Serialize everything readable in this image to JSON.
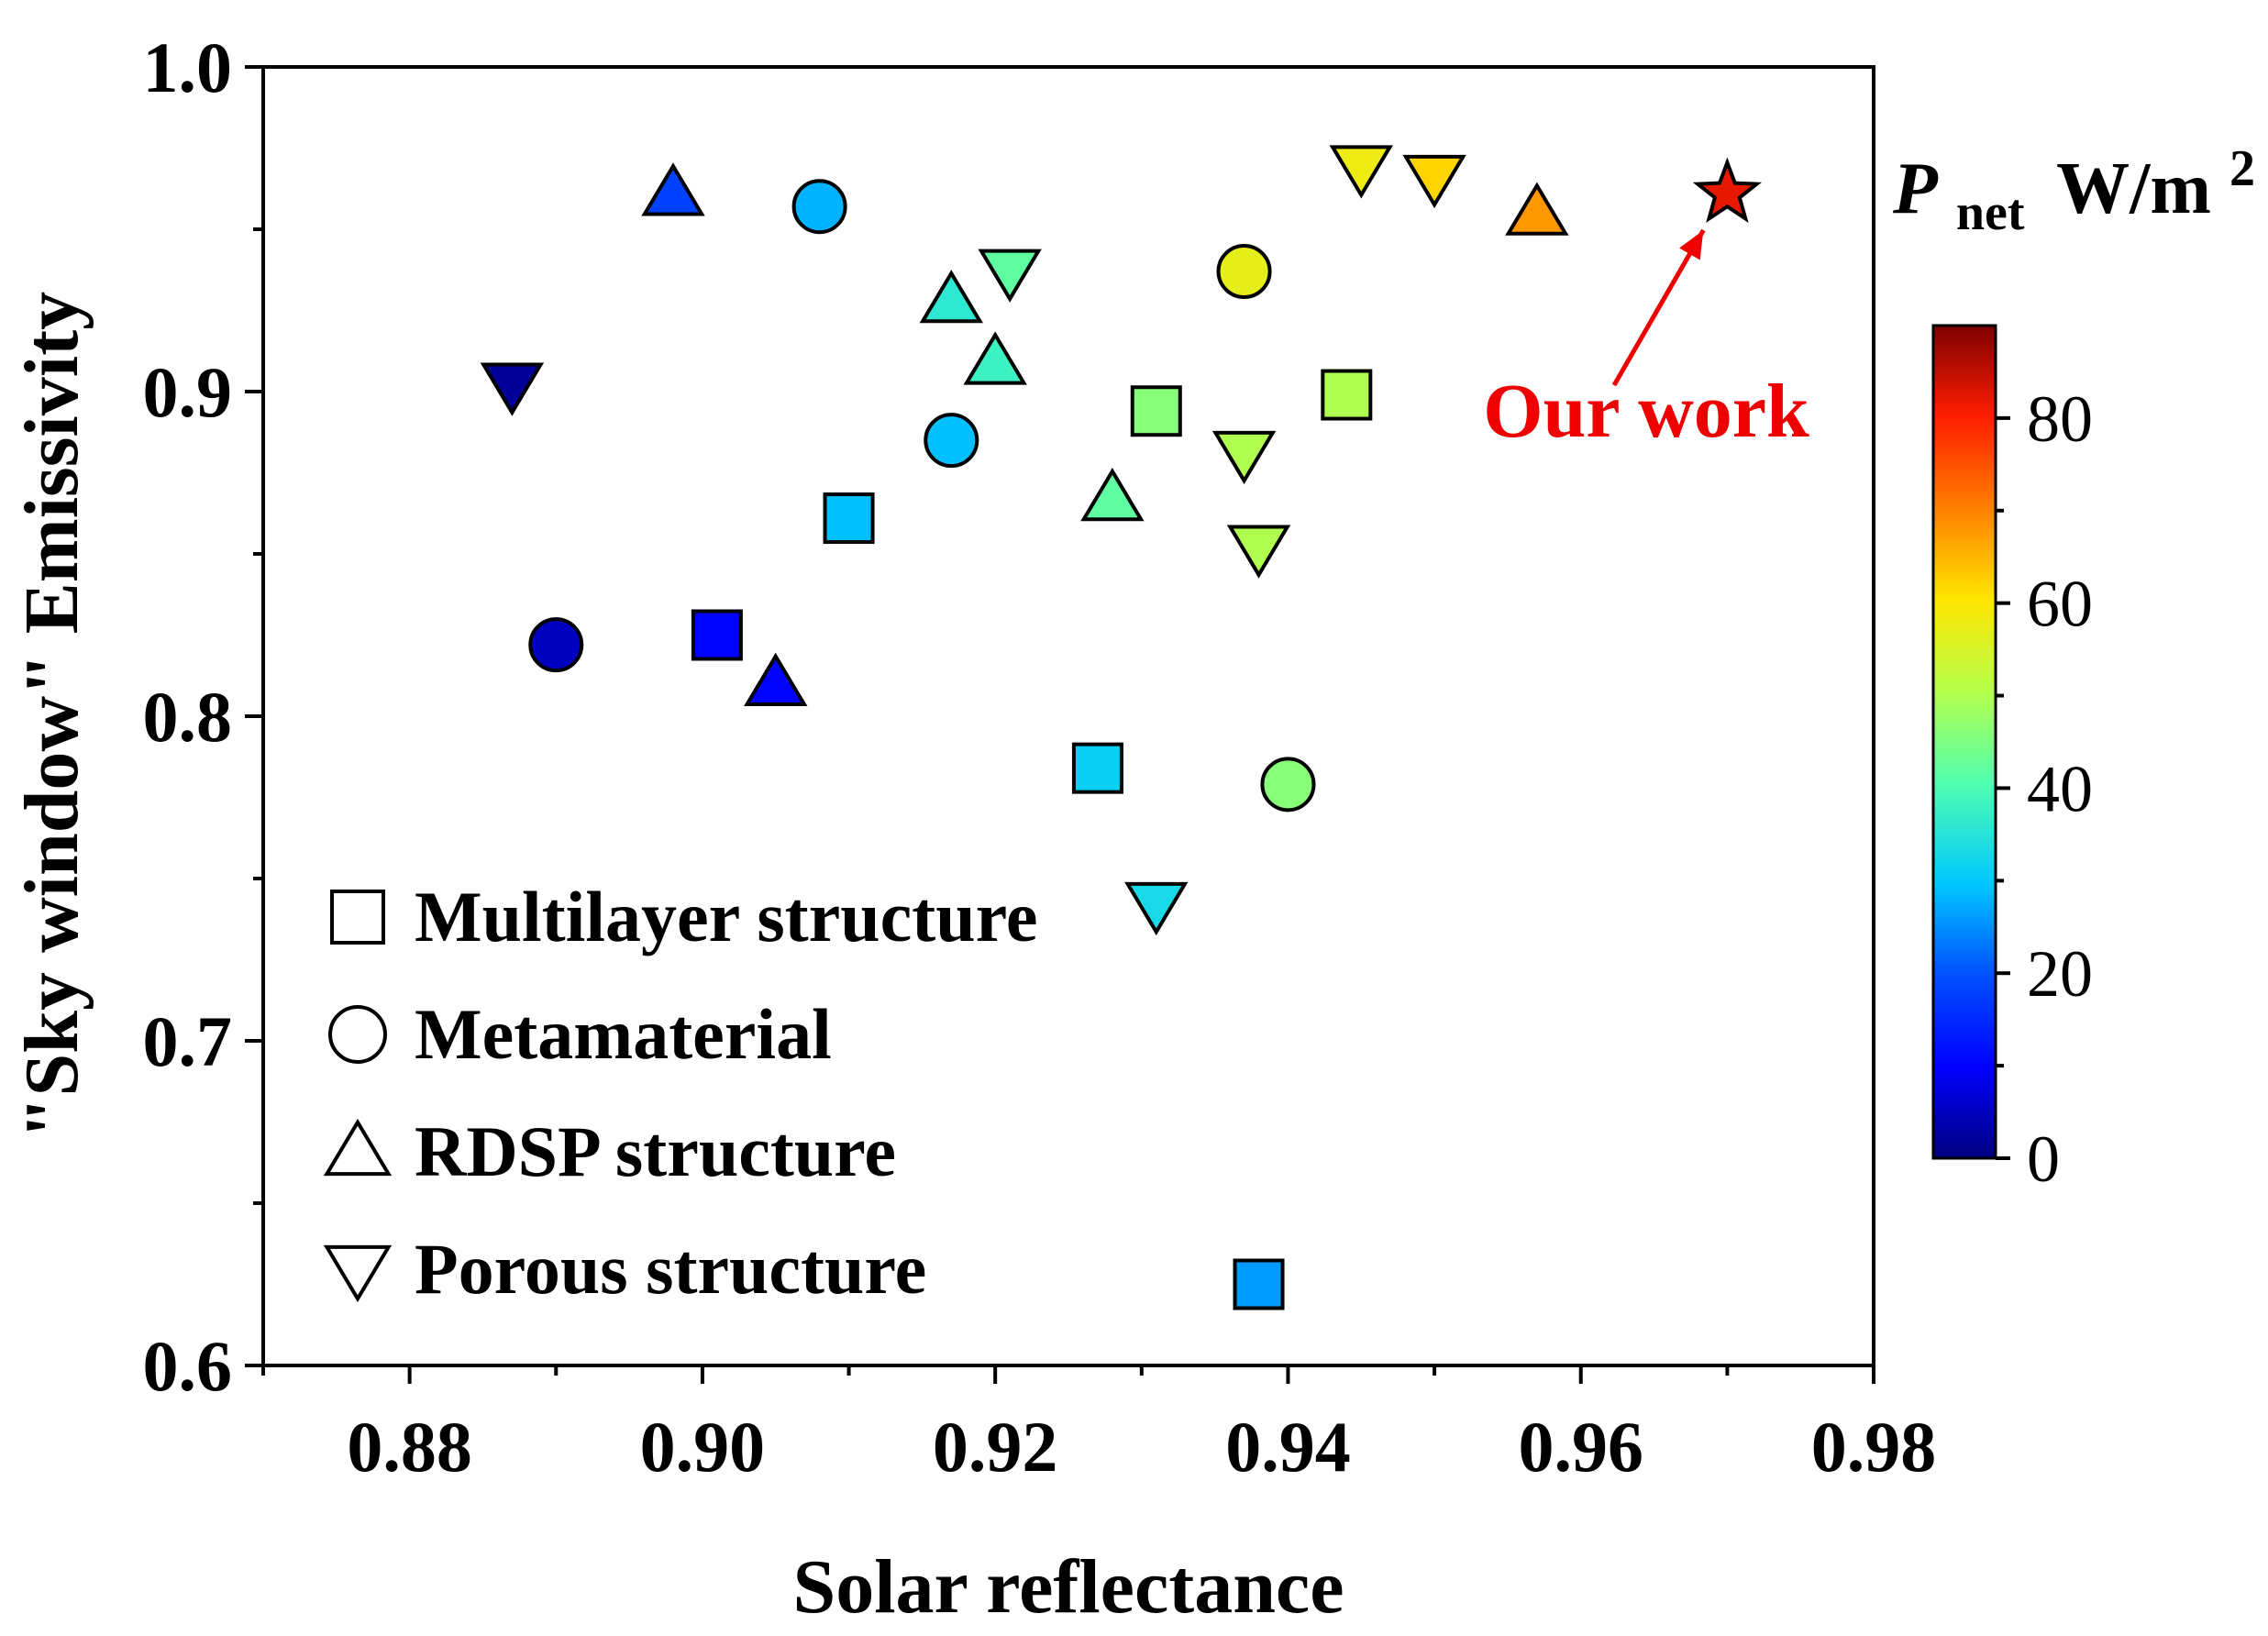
{
  "chart_data": {
    "type": "scatter",
    "xlabel": "Solar reflectance",
    "ylabel": "\"Sky window\" Emissivity",
    "xlim": [
      0.87,
      0.98
    ],
    "ylim": [
      0.6,
      1.0
    ],
    "x_ticks": [
      "0.88",
      "0.90",
      "0.92",
      "0.94",
      "0.96",
      "0.98"
    ],
    "y_ticks": [
      "0.6",
      "0.7",
      "0.8",
      "0.9",
      "1.0"
    ],
    "x_minor_ticks": [
      0.87,
      0.89,
      0.91,
      0.93,
      0.95,
      0.97
    ],
    "y_minor_ticks": [
      0.65,
      0.75,
      0.85,
      0.95
    ],
    "legend": [
      {
        "marker": "square",
        "label": "Multilayer structure"
      },
      {
        "marker": "circle",
        "label": "Metamaterial"
      },
      {
        "marker": "triangle-up",
        "label": "RDSP structure"
      },
      {
        "marker": "triangle-down",
        "label": "Porous structure"
      }
    ],
    "colorbar": {
      "title_p": "P",
      "title_sub": "net",
      "title_unit": "W/m",
      "title_sup": "2",
      "range": [
        0,
        90
      ],
      "ticks": [
        "0",
        "20",
        "40",
        "60",
        "80"
      ],
      "colormap": "jet"
    },
    "annotation": {
      "text": "Our work",
      "color": "#ee0000"
    },
    "series": [
      {
        "name": "Multilayer structure",
        "marker": "square",
        "points": [
          {
            "x": 0.901,
            "y": 0.825,
            "pnet": 10
          },
          {
            "x": 0.91,
            "y": 0.861,
            "pnet": 29
          },
          {
            "x": 0.927,
            "y": 0.784,
            "pnet": 31
          },
          {
            "x": 0.931,
            "y": 0.894,
            "pnet": 46
          },
          {
            "x": 0.944,
            "y": 0.899,
            "pnet": 50
          },
          {
            "x": 0.938,
            "y": 0.625,
            "pnet": 26
          }
        ]
      },
      {
        "name": "Metamaterial",
        "marker": "circle",
        "points": [
          {
            "x": 0.89,
            "y": 0.822,
            "pnet": 5
          },
          {
            "x": 0.908,
            "y": 0.957,
            "pnet": 28
          },
          {
            "x": 0.917,
            "y": 0.885,
            "pnet": 29
          },
          {
            "x": 0.937,
            "y": 0.937,
            "pnet": 57
          },
          {
            "x": 0.94,
            "y": 0.779,
            "pnet": 46
          }
        ]
      },
      {
        "name": "RDSP structure",
        "marker": "triangle-up",
        "points": [
          {
            "x": 0.898,
            "y": 0.961,
            "pnet": 18
          },
          {
            "x": 0.905,
            "y": 0.81,
            "pnet": 10
          },
          {
            "x": 0.917,
            "y": 0.928,
            "pnet": 36
          },
          {
            "x": 0.92,
            "y": 0.909,
            "pnet": 38
          },
          {
            "x": 0.928,
            "y": 0.867,
            "pnet": 42
          },
          {
            "x": 0.957,
            "y": 0.955,
            "pnet": 68
          }
        ]
      },
      {
        "name": "Porous structure",
        "marker": "triangle-down",
        "points": [
          {
            "x": 0.887,
            "y": 0.902,
            "pnet": 2
          },
          {
            "x": 0.921,
            "y": 0.937,
            "pnet": 42
          },
          {
            "x": 0.931,
            "y": 0.742,
            "pnet": 33
          },
          {
            "x": 0.937,
            "y": 0.881,
            "pnet": 50
          },
          {
            "x": 0.938,
            "y": 0.852,
            "pnet": 50
          },
          {
            "x": 0.945,
            "y": 0.969,
            "pnet": 58
          },
          {
            "x": 0.95,
            "y": 0.966,
            "pnet": 62
          }
        ]
      },
      {
        "name": "Our work",
        "marker": "star",
        "points": [
          {
            "x": 0.97,
            "y": 0.961,
            "pnet": 82
          }
        ]
      }
    ]
  }
}
